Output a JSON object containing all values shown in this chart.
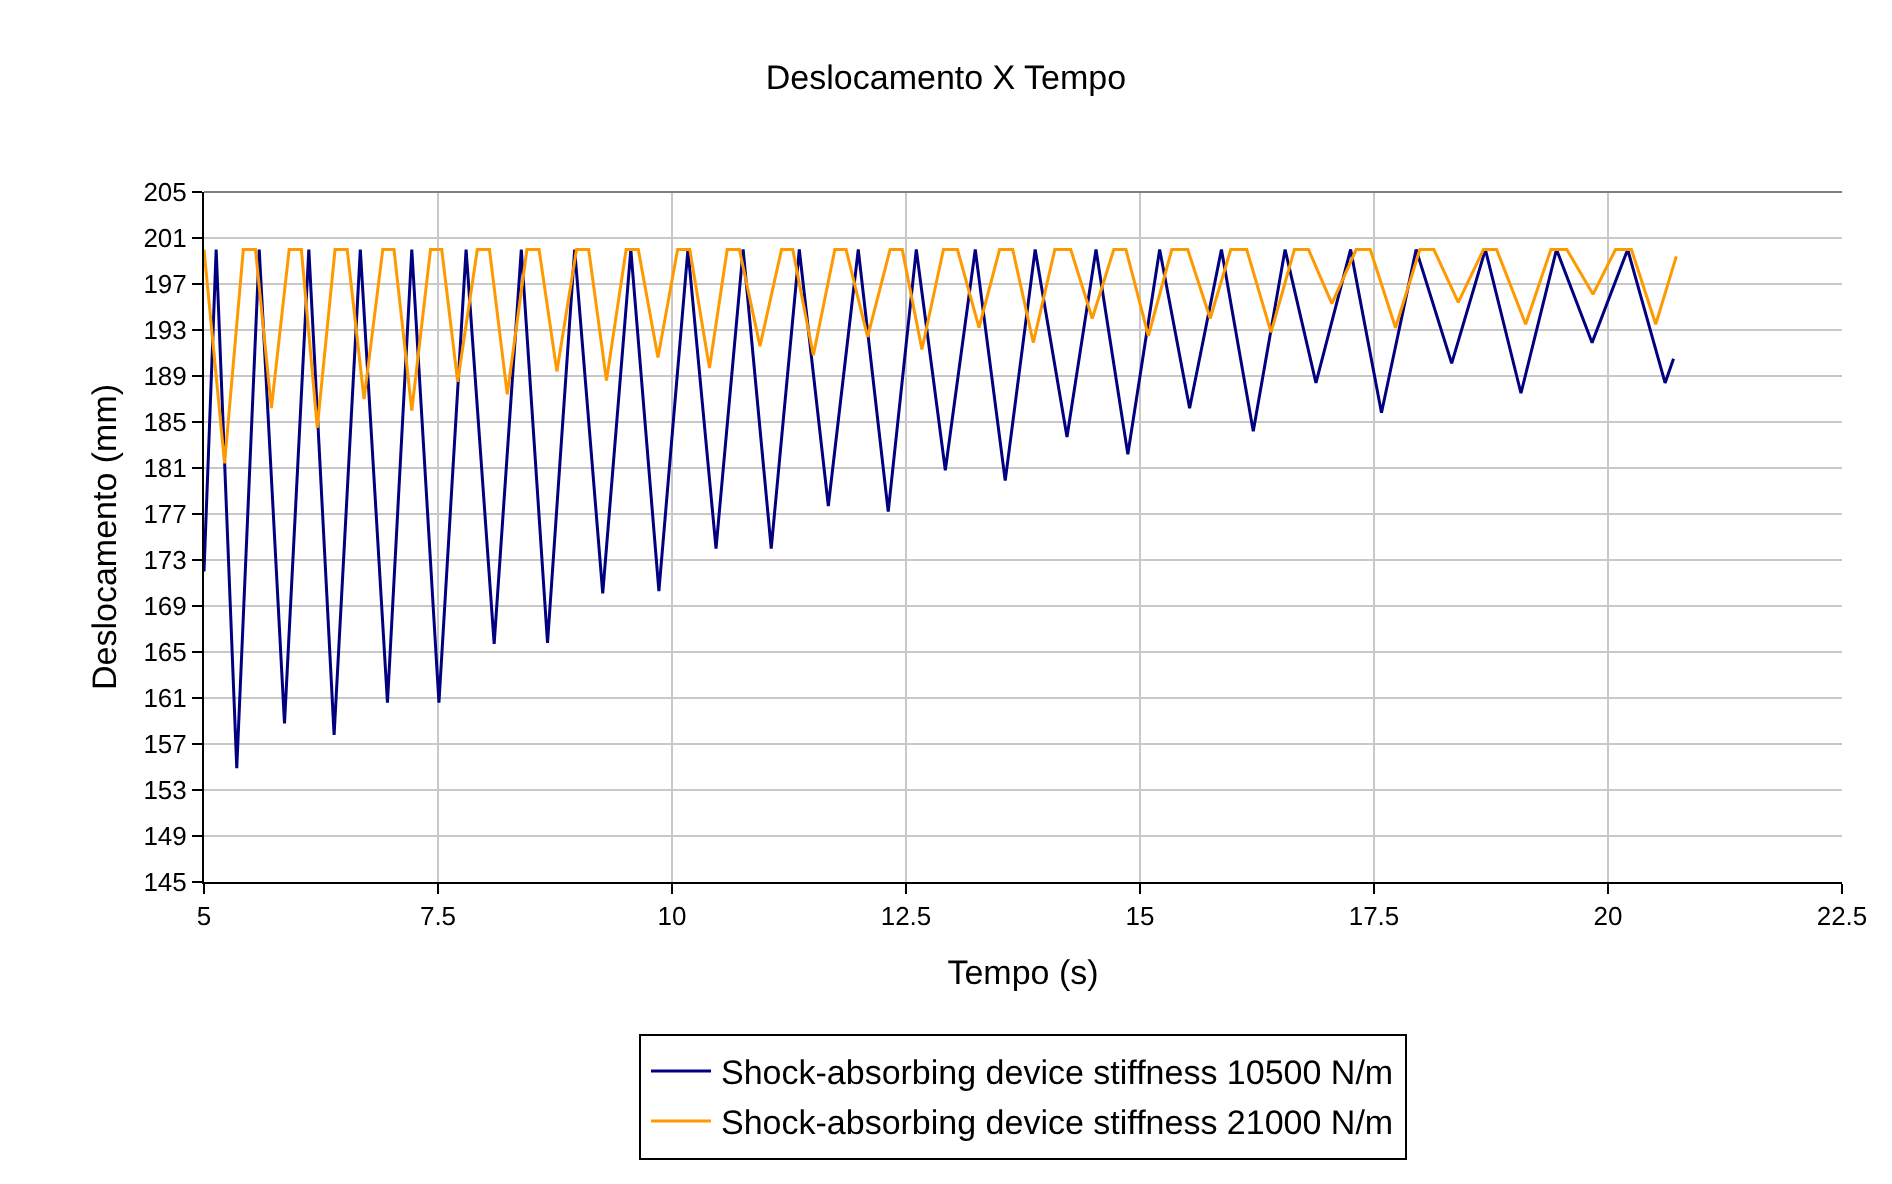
{
  "chart_data": {
    "type": "line",
    "title": "Deslocamento X Tempo",
    "xlabel": "Tempo (s)",
    "ylabel": "Deslocamento (mm)",
    "xlim": [
      5,
      22.5
    ],
    "xticks": [
      5,
      7.5,
      10,
      12.5,
      15,
      17.5,
      20,
      22.5
    ],
    "ylim": [
      145,
      205
    ],
    "yticks": [
      145,
      149,
      153,
      157,
      161,
      165,
      169,
      173,
      177,
      181,
      185,
      189,
      193,
      197,
      201,
      205
    ],
    "grid": true,
    "legend": "bottom",
    "marker": "none",
    "line_style": "solid",
    "series": [
      {
        "name": "Shock-absorbing device stiffness 10500 N/m",
        "color": "#000080",
        "x": [
          5.0,
          5.13,
          5.35,
          5.59,
          5.86,
          6.12,
          6.39,
          6.67,
          6.96,
          7.22,
          7.51,
          7.8,
          8.1,
          8.39,
          8.67,
          8.96,
          9.26,
          9.56,
          9.86,
          10.17,
          10.47,
          10.76,
          11.06,
          11.36,
          11.67,
          11.99,
          12.31,
          12.61,
          12.92,
          13.24,
          13.56,
          13.88,
          14.22,
          14.53,
          14.87,
          15.21,
          15.53,
          15.87,
          16.21,
          16.55,
          16.88,
          17.25,
          17.58,
          17.95,
          18.33,
          18.69,
          19.07,
          19.45,
          19.83,
          20.21,
          20.61,
          20.7
        ],
        "values": [
          172,
          200,
          154.9,
          200,
          158.8,
          200,
          157.8,
          200,
          160.6,
          200,
          160.6,
          200,
          165.7,
          200,
          165.8,
          200,
          170.1,
          200,
          170.3,
          200,
          174.0,
          200,
          174.0,
          200,
          177.7,
          200,
          177.2,
          200,
          180.8,
          200,
          179.9,
          200,
          183.7,
          200,
          182.2,
          200,
          186.2,
          200,
          184.2,
          200,
          188.4,
          200,
          185.8,
          200,
          190.1,
          200,
          187.5,
          200,
          191.9,
          200,
          188.4,
          190.5
        ]
      },
      {
        "name": "Shock-absorbing device stiffness 21000 N/m",
        "color": "#ff9900",
        "x": [
          5.0,
          5.22,
          5.42,
          5.55,
          5.72,
          5.91,
          6.04,
          6.21,
          6.4,
          6.53,
          6.71,
          6.91,
          7.03,
          7.22,
          7.42,
          7.54,
          7.71,
          7.92,
          8.05,
          8.24,
          8.45,
          8.58,
          8.77,
          8.98,
          9.11,
          9.3,
          9.51,
          9.64,
          9.85,
          10.06,
          10.19,
          10.4,
          10.59,
          10.72,
          10.94,
          11.17,
          11.29,
          11.51,
          11.74,
          11.86,
          12.09,
          12.33,
          12.46,
          12.67,
          12.9,
          13.05,
          13.28,
          13.5,
          13.64,
          13.86,
          14.09,
          14.26,
          14.49,
          14.72,
          14.85,
          15.09,
          15.34,
          15.51,
          15.75,
          15.97,
          16.14,
          16.4,
          16.65,
          16.8,
          17.05,
          17.31,
          17.46,
          17.73,
          17.99,
          18.14,
          18.4,
          18.67,
          18.81,
          19.12,
          19.39,
          19.56,
          19.84,
          20.08,
          20.25,
          20.51,
          20.73
        ],
        "values": [
          200,
          181.4,
          200,
          200,
          186.2,
          200,
          200,
          184.5,
          200,
          200,
          187.0,
          200,
          200,
          186.0,
          200,
          200,
          188.5,
          200,
          200,
          187.4,
          200,
          200,
          189.4,
          200,
          200,
          188.6,
          200,
          200,
          190.6,
          200,
          200,
          189.7,
          200,
          200,
          191.6,
          200,
          200,
          190.8,
          200,
          200,
          192.4,
          200,
          200,
          191.3,
          200,
          200,
          193.2,
          200,
          200,
          191.9,
          200,
          200,
          194.0,
          200,
          200,
          192.5,
          200,
          200,
          194.0,
          200,
          200,
          192.8,
          200,
          200,
          195.3,
          200,
          200,
          193.2,
          200,
          200,
          195.4,
          200,
          200,
          193.5,
          200,
          200,
          196.1,
          200,
          200,
          193.5,
          199.4
        ]
      }
    ]
  }
}
